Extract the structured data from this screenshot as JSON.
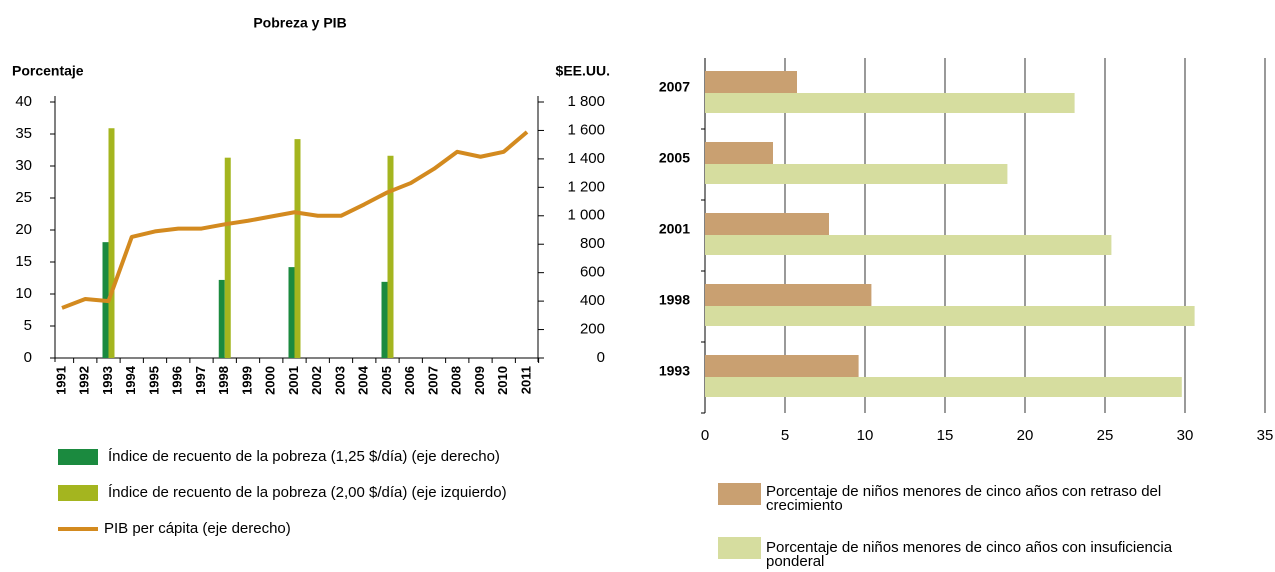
{
  "chart_data": [
    {
      "type": "combo",
      "title": "Pobreza y PIB",
      "y_label": "Porcentaje",
      "y2_label": "$EE.UU.",
      "categories": [
        "1991",
        "1992",
        "1993",
        "1994",
        "1995",
        "1996",
        "1997",
        "1998",
        "1999",
        "2000",
        "2001",
        "2002",
        "2003",
        "2004",
        "2005",
        "2006",
        "2007",
        "2008",
        "2009",
        "2010",
        "2011"
      ],
      "series": [
        {
          "name": "Índice de recuento de la pobreza (1,25 $/día) (eje derecho)",
          "color": "#1b8a3f",
          "kind": "bar",
          "values": [
            null,
            null,
            18.1,
            null,
            null,
            null,
            null,
            12.2,
            null,
            null,
            14.2,
            null,
            null,
            null,
            11.9,
            null,
            null,
            null,
            null,
            null,
            null
          ]
        },
        {
          "name": "Índice de recuento de la pobreza (2,00 $/día) (eje izquierdo)",
          "color": "#a4b51f",
          "kind": "bar",
          "values": [
            null,
            null,
            35.9,
            null,
            null,
            null,
            null,
            31.3,
            null,
            null,
            34.2,
            null,
            null,
            null,
            31.6,
            null,
            null,
            null,
            null,
            null,
            null
          ]
        },
        {
          "name": "PIB per cápita (eje derecho)",
          "color": "#d38a1f",
          "kind": "line",
          "axis": "y2",
          "values": [
            352,
            415,
            400,
            851,
            890,
            910,
            910,
            940,
            965,
            995,
            1025,
            1000,
            1000,
            1080,
            1165,
            1230,
            1330,
            1450,
            1415,
            1450,
            1589
          ]
        }
      ],
      "ylim": [
        0,
        40
      ],
      "yticks": [
        0,
        5,
        10,
        15,
        20,
        25,
        30,
        35,
        40
      ],
      "y2lim": [
        0,
        1800
      ],
      "y2ticks": [
        0,
        200,
        400,
        600,
        800,
        {
          "value": 1000,
          "label": "1 000"
        },
        {
          "value": 1200,
          "label": "1 200"
        },
        {
          "value": 1400,
          "label": "1 400"
        },
        {
          "value": 1600,
          "label": "1 600"
        },
        {
          "value": 1800,
          "label": "1 800"
        }
      ]
    },
    {
      "type": "barh",
      "categories": [
        "2007",
        "2005",
        "2001",
        "1998",
        "1993"
      ],
      "series": [
        {
          "name": "Porcentaje de niños menores de cinco años con retraso del crecimiento",
          "color": "#c9a071",
          "values": [
            5.75,
            4.25,
            7.75,
            10.4,
            9.6
          ]
        },
        {
          "name": "Porcentaje de niños menores de cinco años con insuficiencia ponderal",
          "color": "#d6dd9f",
          "values": [
            23.1,
            18.9,
            25.4,
            30.6,
            29.8
          ]
        }
      ],
      "xlim": [
        0,
        35
      ],
      "xticks": [
        0,
        5,
        10,
        15,
        20,
        25,
        30,
        35
      ],
      "grid": true
    }
  ]
}
